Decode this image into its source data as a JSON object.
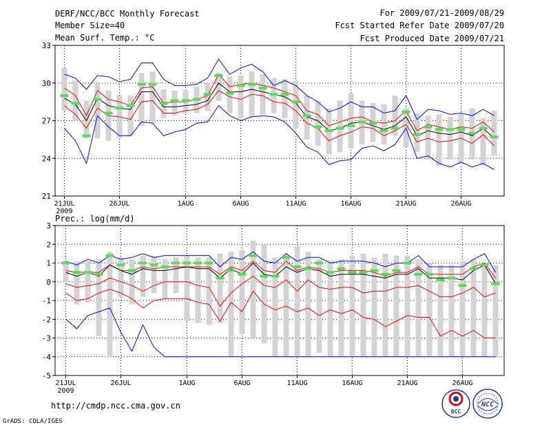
{
  "header": {
    "title": "DERF/NCC/BCC Monthly Forecast",
    "member_size": "Member Size=40",
    "variable1": "Mean Surf. Temp.: °C",
    "fcst_range": "For 2009/07/21-2009/08/29",
    "started": "Fcst Started Refer Date 2009/07/20",
    "produced": "Fcst Produced Date 2009/07/21"
  },
  "footer": {
    "url": "http://cmdp.ncc.cma.gov.cn",
    "grads": "GrADS: COLA/IGES",
    "logo1": "BCC",
    "logo2": "NCC"
  },
  "colors": {
    "box": "#d3d3d3",
    "mean": "#000000",
    "sd": "#ff0000",
    "extreme": "#0000ff",
    "obs": "#55dd55",
    "grid": "#000000"
  },
  "chart_data": [
    {
      "type": "line",
      "title": "Mean Surf. Temp.: °C",
      "ylabel": "Mean Surf. Temp. (°C)",
      "ylim": [
        21,
        33
      ],
      "yticks": [
        21,
        24,
        27,
        30,
        33
      ],
      "xticks": [
        {
          "day": 1,
          "label": "21JUL",
          "sub": "2009"
        },
        {
          "day": 6,
          "label": "26JUL"
        },
        {
          "day": 12,
          "label": "1AUG"
        },
        {
          "day": 17,
          "label": "6AUG"
        },
        {
          "day": 22,
          "label": "11AUG"
        },
        {
          "day": 27,
          "label": "16AUG"
        },
        {
          "day": 32,
          "label": "21AUG"
        },
        {
          "day": 37,
          "label": "26AUG"
        }
      ],
      "days": [
        1,
        2,
        3,
        4,
        5,
        6,
        7,
        8,
        9,
        10,
        11,
        12,
        13,
        14,
        15,
        16,
        17,
        18,
        19,
        20,
        21,
        22,
        23,
        24,
        25,
        26,
        27,
        28,
        29,
        30,
        31,
        32,
        33,
        34,
        35,
        36,
        37,
        38,
        39,
        40
      ],
      "box_top": [
        31.2,
        30.2,
        28.6,
        30.0,
        29.4,
        29.0,
        29.0,
        30.8,
        30.9,
        29.5,
        29.4,
        29.4,
        29.7,
        30.0,
        30.8,
        30.5,
        30.6,
        30.9,
        30.7,
        30.4,
        30.3,
        30.2,
        29.0,
        28.6,
        28.0,
        28.6,
        29.2,
        28.6,
        28.4,
        28.3,
        29.0,
        28.0,
        27.6,
        27.4,
        27.5,
        27.3,
        27.5,
        28.0,
        27.2,
        27.8
      ],
      "box_bottom": [
        27.8,
        27.0,
        25.6,
        25.6,
        25.4,
        25.6,
        25.8,
        26.6,
        26.8,
        27.2,
        27.4,
        27.6,
        27.6,
        27.8,
        28.6,
        27.6,
        27.2,
        27.3,
        27.5,
        27.6,
        27.2,
        26.4,
        25.5,
        25.0,
        24.3,
        24.5,
        24.8,
        25.1,
        25.3,
        25.1,
        25.8,
        24.9,
        24.5,
        23.9,
        23.4,
        23.9,
        23.5,
        23.9,
        23.4,
        24.2
      ],
      "series": [
        {
          "name": "Ensemble max",
          "role": "extreme",
          "values": [
            30.7,
            30.4,
            29.5,
            30.6,
            30.5,
            30.1,
            30.3,
            31.6,
            31.6,
            30.3,
            29.8,
            29.8,
            29.9,
            30.4,
            31.9,
            30.7,
            31.2,
            31.5,
            30.9,
            29.8,
            30.2,
            29.8,
            29.0,
            28.5,
            27.7,
            28.0,
            28.5,
            28.1,
            28.1,
            27.6,
            27.8,
            29.0,
            27.1,
            27.9,
            27.8,
            27.5,
            27.6,
            27.4,
            27.9,
            27.4
          ]
        },
        {
          "name": "Mean + SD",
          "role": "sd",
          "values": [
            29.6,
            29.0,
            27.4,
            29.4,
            28.7,
            28.5,
            28.2,
            29.6,
            29.7,
            28.4,
            28.5,
            28.5,
            28.7,
            29.0,
            30.7,
            29.7,
            29.9,
            30.0,
            29.8,
            29.6,
            29.3,
            29.0,
            27.8,
            27.5,
            26.6,
            26.9,
            27.2,
            27.3,
            26.9,
            26.8,
            27.0,
            27.8,
            26.2,
            26.7,
            26.5,
            26.3,
            26.5,
            26.4,
            26.9,
            26.1
          ]
        },
        {
          "name": "Ensemble mean",
          "role": "mean",
          "values": [
            28.8,
            28.3,
            27.0,
            28.8,
            28.2,
            28.0,
            27.9,
            29.3,
            29.3,
            28.1,
            28.1,
            28.2,
            28.3,
            28.6,
            30.0,
            29.3,
            29.3,
            29.5,
            29.3,
            29.1,
            28.9,
            28.4,
            27.3,
            27.0,
            26.2,
            26.4,
            26.8,
            26.9,
            26.6,
            26.3,
            26.6,
            27.3,
            25.8,
            26.2,
            26.0,
            25.9,
            26.1,
            25.8,
            26.4,
            25.6
          ]
        },
        {
          "name": "Mean - SD",
          "role": "sd",
          "values": [
            28.2,
            27.5,
            26.4,
            28.0,
            27.4,
            27.3,
            27.1,
            28.5,
            28.6,
            27.6,
            27.6,
            27.8,
            27.9,
            28.3,
            29.4,
            28.9,
            28.7,
            29.1,
            29.0,
            28.5,
            28.4,
            27.8,
            26.8,
            26.4,
            25.4,
            25.8,
            26.1,
            26.5,
            26.4,
            25.8,
            26.2,
            26.7,
            25.3,
            25.6,
            25.3,
            25.4,
            25.6,
            25.2,
            25.9,
            25.0
          ]
        },
        {
          "name": "Ensemble min",
          "role": "extreme",
          "values": [
            26.4,
            25.4,
            23.6,
            27.4,
            26.5,
            25.8,
            25.8,
            26.9,
            26.8,
            25.8,
            26.1,
            26.3,
            26.8,
            26.9,
            28.2,
            27.4,
            27.0,
            27.3,
            27.4,
            27.3,
            26.9,
            26.0,
            24.9,
            24.5,
            23.5,
            23.8,
            23.9,
            24.8,
            25.0,
            24.6,
            25.1,
            26.4,
            24.0,
            24.2,
            23.6,
            23.3,
            23.7,
            23.3,
            23.6,
            23.1
          ]
        },
        {
          "name": "Observed / reference",
          "role": "obs",
          "values": [
            29.0,
            28.4,
            25.8,
            28.7,
            27.6,
            28.0,
            28.2,
            29.9,
            29.9,
            28.4,
            28.6,
            28.6,
            28.7,
            29.1,
            30.6,
            29.2,
            29.8,
            29.9,
            29.6,
            29.1,
            29.1,
            28.5,
            27.4,
            26.5,
            26.2,
            26.4,
            26.6,
            26.9,
            26.8,
            26.2,
            26.4,
            27.7,
            25.9,
            26.5,
            26.3,
            26.3,
            26.3,
            26.0,
            26.4,
            25.7
          ]
        }
      ]
    },
    {
      "type": "line",
      "title": "Prec.: log(mm/d)",
      "ylabel": "Prec. log(mm/d)",
      "ylim": [
        -5,
        3
      ],
      "yticks": [
        -5,
        -4,
        -3,
        -2,
        -1,
        0,
        1,
        2,
        3
      ],
      "xticks": [
        {
          "day": 1,
          "label": "21JUL",
          "sub": "2009"
        },
        {
          "day": 6,
          "label": "26JUL"
        },
        {
          "day": 12,
          "label": "1AUG"
        },
        {
          "day": 17,
          "label": "6AUG"
        },
        {
          "day": 22,
          "label": "11AUG"
        },
        {
          "day": 27,
          "label": "16AUG"
        },
        {
          "day": 32,
          "label": "21AUG"
        },
        {
          "day": 37,
          "label": "26AUG"
        }
      ],
      "days": [
        1,
        2,
        3,
        4,
        5,
        6,
        7,
        8,
        9,
        10,
        11,
        12,
        13,
        14,
        15,
        16,
        17,
        18,
        19,
        20,
        21,
        22,
        23,
        24,
        25,
        26,
        27,
        28,
        29,
        30,
        31,
        32,
        33,
        34,
        35,
        36,
        37,
        38,
        39,
        40
      ],
      "box_top": [
        1.1,
        1.1,
        1.1,
        1.2,
        1.6,
        1.3,
        1.2,
        1.4,
        1.3,
        1.2,
        1.3,
        1.4,
        1.3,
        1.3,
        1.5,
        1.6,
        1.7,
        2.2,
        2.0,
        1.3,
        1.4,
        1.9,
        1.6,
        1.2,
        1.1,
        1.2,
        1.4,
        1.5,
        1.3,
        1.5,
        1.4,
        1.4,
        1.2,
        1.0,
        0.9,
        0.9,
        1.1,
        1.2,
        1.0,
        0.9
      ],
      "box_bottom": [
        0.0,
        -1.2,
        -1.1,
        -2.9,
        -4.0,
        -0.8,
        -1.2,
        -0.8,
        -0.6,
        -0.9,
        -0.6,
        -2.1,
        -2.2,
        -2.3,
        -2.2,
        -4.0,
        -2.8,
        -3.0,
        -3.3,
        -4.0,
        -4.0,
        -4.0,
        -4.0,
        -3.8,
        -4.0,
        -4.0,
        -4.0,
        -4.0,
        -4.0,
        -4.0,
        -4.0,
        -4.0,
        -4.0,
        -4.0,
        -4.0,
        -4.0,
        -4.0,
        -4.0,
        -4.0,
        -4.0
      ],
      "series": [
        {
          "name": "Ensemble max",
          "role": "extreme",
          "values": [
            1.1,
            0.9,
            1.2,
            1.0,
            1.4,
            1.2,
            1.3,
            1.5,
            1.3,
            1.4,
            1.4,
            1.4,
            1.4,
            1.4,
            0.8,
            1.3,
            1.2,
            1.6,
            1.1,
            1.0,
            1.5,
            1.1,
            1.3,
            1.3,
            1.0,
            1.1,
            1.1,
            1.1,
            1.0,
            0.8,
            1.0,
            1.0,
            1.4,
            0.8,
            0.8,
            0.8,
            0.8,
            1.2,
            1.5,
            0.5
          ]
        },
        {
          "name": "Mean + SD",
          "role": "sd",
          "values": [
            0.6,
            0.5,
            0.5,
            0.5,
            0.9,
            0.6,
            0.6,
            0.8,
            0.7,
            0.8,
            0.8,
            0.8,
            0.8,
            0.8,
            0.4,
            0.8,
            0.6,
            1.1,
            0.6,
            0.5,
            1.1,
            0.6,
            0.8,
            0.7,
            0.5,
            0.6,
            0.6,
            0.6,
            0.5,
            0.3,
            0.5,
            0.5,
            0.8,
            0.4,
            0.4,
            0.4,
            0.4,
            0.8,
            1.0,
            0.2
          ]
        },
        {
          "name": "Ensemble mean",
          "role": "mean",
          "values": [
            0.5,
            0.3,
            0.5,
            0.3,
            0.9,
            0.6,
            0.4,
            0.7,
            0.6,
            0.6,
            0.7,
            0.8,
            0.7,
            0.7,
            0.2,
            0.7,
            0.4,
            1.0,
            0.4,
            0.3,
            0.8,
            0.5,
            0.7,
            0.6,
            0.3,
            0.4,
            0.4,
            0.4,
            0.3,
            0.2,
            0.4,
            0.4,
            0.7,
            0.2,
            0.2,
            0.2,
            0.1,
            0.6,
            0.9,
            -0.1
          ]
        },
        {
          "name": "Mean - SD",
          "role": "sd",
          "values": [
            -0.1,
            -0.3,
            -0.2,
            -0.1,
            0.2,
            0.0,
            -0.2,
            -0.5,
            -0.2,
            0.0,
            0.0,
            0.0,
            -0.2,
            -0.3,
            -1.3,
            -0.6,
            -0.1,
            0.3,
            -0.2,
            -0.3,
            0.1,
            -0.5,
            0.1,
            -0.3,
            -0.4,
            -0.3,
            -0.3,
            -0.6,
            -0.5,
            -0.5,
            -0.3,
            -0.3,
            -0.2,
            -0.5,
            -0.8,
            -0.8,
            -0.6,
            -0.3,
            -0.8,
            -0.6
          ]
        },
        {
          "name": "Mean - 2SD",
          "role": "sd",
          "values": [
            -0.6,
            -1.0,
            -0.9,
            -0.6,
            -0.4,
            -0.6,
            -0.9,
            -1.4,
            -1.0,
            -0.9,
            -0.9,
            -0.9,
            -1.1,
            -1.2,
            -2.1,
            -1.1,
            -1.6,
            -0.5,
            -1.2,
            -1.5,
            -1.3,
            -1.6,
            -1.4,
            -1.8,
            -1.5,
            -1.7,
            -1.5,
            -1.9,
            -2.0,
            -2.4,
            -2.1,
            -1.8,
            -1.9,
            -1.9,
            -2.9,
            -2.6,
            -2.9,
            -2.6,
            -3.0,
            -3.0
          ]
        },
        {
          "name": "Ensemble min",
          "role": "extreme",
          "values": [
            -2.0,
            -2.5,
            -1.8,
            -1.6,
            -1.4,
            -2.7,
            -3.7,
            -2.3,
            -3.5,
            -4.0,
            -4.0,
            -4.0,
            -4.0,
            -4.0,
            -4.0,
            -4.0,
            -4.0,
            -4.0,
            -4.0,
            -4.0,
            -4.0,
            -4.0,
            -4.0,
            -4.0,
            -4.0,
            -4.0,
            -4.0,
            -4.0,
            -4.0,
            -4.0,
            -4.0,
            -4.0,
            -4.0,
            -4.0,
            -4.0,
            -4.0,
            -4.0,
            -4.0,
            -4.0,
            -4.0
          ]
        },
        {
          "name": "Observed / reference",
          "role": "obs",
          "values": [
            1.0,
            0.5,
            0.5,
            0.4,
            1.4,
            0.9,
            0.6,
            1.0,
            0.9,
            0.8,
            1.0,
            1.0,
            1.0,
            1.0,
            0.2,
            0.6,
            0.4,
            1.4,
            0.3,
            0.3,
            1.3,
            0.8,
            0.7,
            1.0,
            0.5,
            0.7,
            0.5,
            0.5,
            0.6,
            0.4,
            0.6,
            1.0,
            0.4,
            0.4,
            0.1,
            0.2,
            -0.2,
            0.7,
            0.9,
            -0.1
          ]
        }
      ]
    }
  ]
}
